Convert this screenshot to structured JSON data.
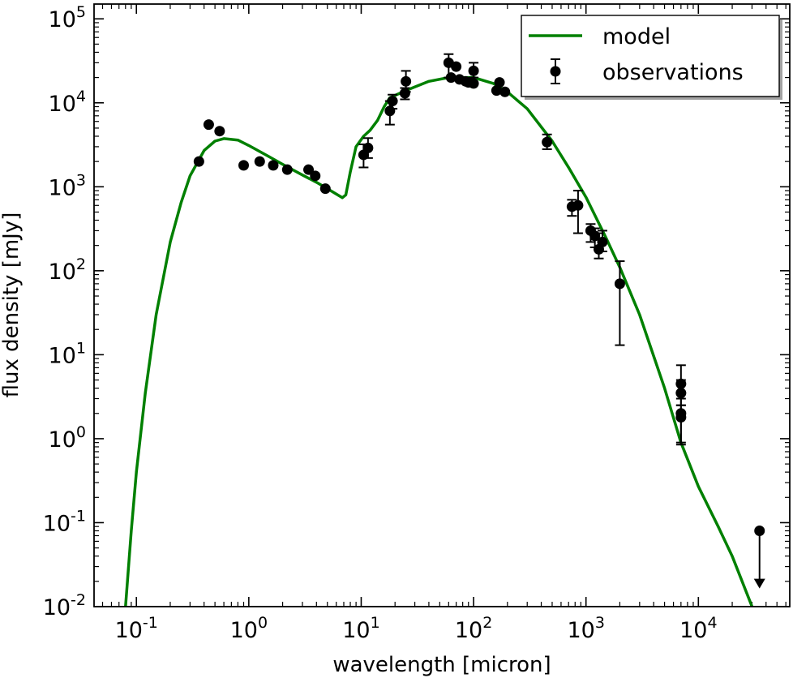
{
  "chart_data": {
    "type": "scatter",
    "title": "",
    "xlabel": "wavelength [micron]",
    "ylabel": "flux density [mJy]",
    "xscale": "log",
    "yscale": "log",
    "xlim": [
      0.042,
      65000
    ],
    "ylim": [
      0.01,
      150000
    ],
    "grid": false,
    "legend_position": "top-right",
    "x_ticks": [
      {
        "value": 0.1,
        "base": "10",
        "exp": "-1"
      },
      {
        "value": 1,
        "base": "10",
        "exp": "0"
      },
      {
        "value": 10,
        "base": "10",
        "exp": "1"
      },
      {
        "value": 100,
        "base": "10",
        "exp": "2"
      },
      {
        "value": 1000,
        "base": "10",
        "exp": "3"
      },
      {
        "value": 10000,
        "base": "10",
        "exp": "4"
      }
    ],
    "y_ticks": [
      {
        "value": 0.01,
        "base": "10",
        "exp": "-2"
      },
      {
        "value": 0.1,
        "base": "10",
        "exp": "-1"
      },
      {
        "value": 1,
        "base": "10",
        "exp": "0"
      },
      {
        "value": 10,
        "base": "10",
        "exp": "1"
      },
      {
        "value": 100,
        "base": "10",
        "exp": "2"
      },
      {
        "value": 1000,
        "base": "10",
        "exp": "3"
      },
      {
        "value": 10000,
        "base": "10",
        "exp": "4"
      },
      {
        "value": 100000,
        "base": "10",
        "exp": "5"
      }
    ],
    "series": [
      {
        "name": "model",
        "kind": "line",
        "color": "#008000",
        "points": [
          [
            0.08,
            0.01
          ],
          [
            0.09,
            0.08
          ],
          [
            0.1,
            0.4
          ],
          [
            0.12,
            3.5
          ],
          [
            0.15,
            30
          ],
          [
            0.2,
            220
          ],
          [
            0.25,
            650
          ],
          [
            0.3,
            1350
          ],
          [
            0.4,
            2700
          ],
          [
            0.5,
            3500
          ],
          [
            0.6,
            3750
          ],
          [
            0.8,
            3600
          ],
          [
            1.0,
            3100
          ],
          [
            1.5,
            2300
          ],
          [
            2.0,
            1850
          ],
          [
            3.0,
            1380
          ],
          [
            4.0,
            1130
          ],
          [
            5.0,
            950
          ],
          [
            6.0,
            820
          ],
          [
            6.8,
            740
          ],
          [
            7.3,
            800
          ],
          [
            8.0,
            1500
          ],
          [
            9.0,
            3000
          ],
          [
            10.5,
            4000
          ],
          [
            12.0,
            4700
          ],
          [
            14.0,
            6200
          ],
          [
            16.0,
            9000
          ],
          [
            18.0,
            11500
          ],
          [
            25.0,
            14000
          ],
          [
            40.0,
            18000
          ],
          [
            60.0,
            20000
          ],
          [
            100.0,
            20000
          ],
          [
            150.0,
            17000
          ],
          [
            200.0,
            13500
          ],
          [
            300.0,
            8500
          ],
          [
            500.0,
            3500
          ],
          [
            700.0,
            1700
          ],
          [
            1000.0,
            750
          ],
          [
            1500.0,
            250
          ],
          [
            2000.0,
            110
          ],
          [
            3000.0,
            30
          ],
          [
            5000.0,
            4.0
          ],
          [
            7000.0,
            0.9
          ],
          [
            10000.0,
            0.27
          ],
          [
            15000.0,
            0.09
          ],
          [
            20000.0,
            0.04
          ],
          [
            30000.0,
            0.01
          ]
        ]
      },
      {
        "name": "observations",
        "kind": "errorbar",
        "color": "#000000",
        "points": [
          {
            "x": 0.36,
            "y": 2000
          },
          {
            "x": 0.44,
            "y": 5500
          },
          {
            "x": 0.55,
            "y": 4600
          },
          {
            "x": 0.9,
            "y": 1800
          },
          {
            "x": 1.25,
            "y": 2000
          },
          {
            "x": 1.65,
            "y": 1800
          },
          {
            "x": 2.2,
            "y": 1600
          },
          {
            "x": 3.4,
            "y": 1600
          },
          {
            "x": 3.9,
            "y": 1350
          },
          {
            "x": 4.8,
            "y": 950
          },
          {
            "x": 10.5,
            "y": 2400,
            "ylo": 1700,
            "yhi": 3200
          },
          {
            "x": 11.5,
            "y": 2900,
            "ylo": 2200,
            "yhi": 3800
          },
          {
            "x": 18,
            "y": 8000,
            "ylo": 5500,
            "yhi": 10500
          },
          {
            "x": 19,
            "y": 10500,
            "ylo": 8500,
            "yhi": 12500
          },
          {
            "x": 24.5,
            "y": 13000,
            "ylo": 11000,
            "yhi": 15000
          },
          {
            "x": 25,
            "y": 18000,
            "ylo": 13500,
            "yhi": 24000
          },
          {
            "x": 60,
            "y": 30000,
            "ylo": 20000,
            "yhi": 38000
          },
          {
            "x": 63,
            "y": 20000
          },
          {
            "x": 70,
            "y": 27000
          },
          {
            "x": 75,
            "y": 19000
          },
          {
            "x": 85,
            "y": 18000
          },
          {
            "x": 90,
            "y": 17500
          },
          {
            "x": 100,
            "y": 24000,
            "ylo": 20000,
            "yhi": 30000
          },
          {
            "x": 100,
            "y": 17000
          },
          {
            "x": 160,
            "y": 14000
          },
          {
            "x": 170,
            "y": 17500
          },
          {
            "x": 190,
            "y": 13500
          },
          {
            "x": 450,
            "y": 3400,
            "ylo": 2800,
            "yhi": 4200
          },
          {
            "x": 750,
            "y": 580,
            "ylo": 450,
            "yhi": 700
          },
          {
            "x": 850,
            "y": 600,
            "ylo": 280,
            "yhi": 900
          },
          {
            "x": 1100,
            "y": 300,
            "ylo": 220,
            "yhi": 360
          },
          {
            "x": 1200,
            "y": 260,
            "ylo": 190,
            "yhi": 320
          },
          {
            "x": 1300,
            "y": 180,
            "ylo": 140,
            "yhi": 280
          },
          {
            "x": 1400,
            "y": 220,
            "ylo": 170,
            "yhi": 300
          },
          {
            "x": 2000,
            "y": 70,
            "ylo": 13,
            "yhi": 130
          },
          {
            "x": 7000,
            "y": 4.5,
            "ylo": 3.0,
            "yhi": 7.5
          },
          {
            "x": 7000,
            "y": 3.5,
            "ylo": 2.5,
            "yhi": 5.0
          },
          {
            "x": 7000,
            "y": 2.0,
            "ylo": 0.85,
            "yhi": 3.5
          },
          {
            "x": 7000,
            "y": 1.8,
            "ylo": 0.9,
            "yhi": 2.5
          },
          {
            "x": 35000,
            "y": 0.08,
            "upper_limit": true,
            "ylo": 0.018
          }
        ]
      }
    ]
  }
}
